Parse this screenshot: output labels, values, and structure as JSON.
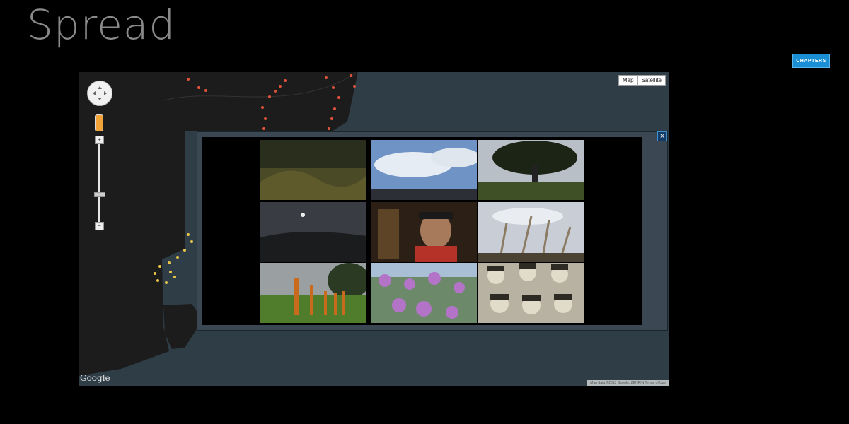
{
  "page": {
    "title": "Spread",
    "chapters_label": "CHAPTERS"
  },
  "map": {
    "type_options": [
      "Map",
      "Satellite"
    ],
    "google_label": "Google",
    "attribution": "Map data ©2013 Google, ZENRIN  Terms of Use"
  },
  "gallery": {
    "close_label": "×",
    "thumbnails": [
      {
        "subject": "forest hillside"
      },
      {
        "subject": "cloudy sky over mountains"
      },
      {
        "subject": "large tree in field"
      },
      {
        "subject": "moon over dusky hills"
      },
      {
        "subject": "elderly man with glasses"
      },
      {
        "subject": "pampas grass against sky"
      },
      {
        "subject": "wooden posts in field"
      },
      {
        "subject": "purple cosmos flowers"
      },
      {
        "subject": "old group photo of faces"
      }
    ]
  }
}
